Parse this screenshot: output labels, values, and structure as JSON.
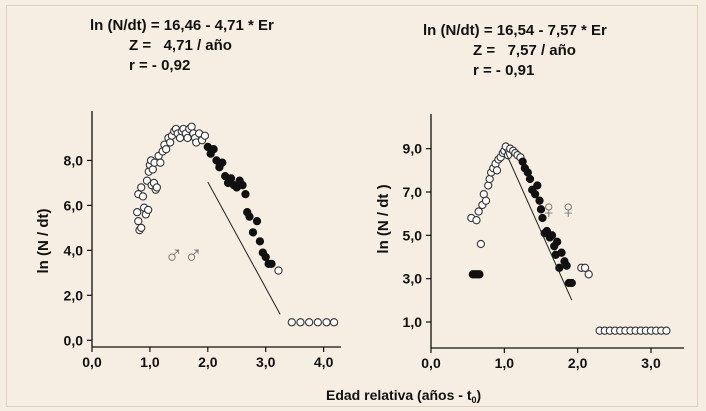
{
  "xlabel_main": "Edad relativa (años - t",
  "xlabel_sub": "0",
  "xlabel_end": ")",
  "chart_data": [
    {
      "type": "scatter",
      "equation": "ln (N/dt) = 16,46 - 4,71 * Er",
      "z_text": "Z =   4,71 / año",
      "r_text": "r = - 0,92",
      "ylabel": "ln (N / dt)",
      "symbol": "♂♂",
      "xlim": [
        0.0,
        4.3
      ],
      "ylim": [
        -0.3,
        10.2
      ],
      "xticks": [
        0.0,
        1.0,
        2.0,
        3.0,
        4.0
      ],
      "xtick_labels": [
        "0,0",
        "1,0",
        "2,0",
        "3,0",
        "4,0"
      ],
      "yticks": [
        0.0,
        2.0,
        4.0,
        6.0,
        8.0
      ],
      "ytick_labels": [
        "0,0",
        "2,0",
        "4,0",
        "6,0",
        "8,0"
      ],
      "fit": {
        "intercept": 16.46,
        "slope": -4.71,
        "x_range": [
          2.0,
          3.25
        ]
      },
      "series": [
        {
          "marker": "open",
          "points": [
            [
              0.78,
              5.7
            ],
            [
              0.8,
              5.3
            ],
            [
              0.82,
              4.9
            ],
            [
              0.85,
              5.0
            ],
            [
              0.8,
              6.5
            ],
            [
              0.85,
              6.8
            ],
            [
              0.88,
              6.4
            ],
            [
              0.9,
              5.9
            ],
            [
              0.93,
              5.6
            ],
            [
              0.97,
              5.8
            ],
            [
              0.95,
              7.1
            ],
            [
              0.98,
              7.5
            ],
            [
              1.0,
              7.8
            ],
            [
              1.02,
              8.0
            ],
            [
              1.05,
              7.6
            ],
            [
              1.08,
              7.9
            ],
            [
              1.03,
              6.9
            ],
            [
              1.07,
              7.0
            ],
            [
              1.1,
              6.7
            ],
            [
              1.12,
              6.8
            ],
            [
              1.15,
              8.2
            ],
            [
              1.18,
              7.9
            ],
            [
              1.22,
              8.4
            ],
            [
              1.25,
              8.7
            ],
            [
              1.28,
              8.5
            ],
            [
              1.32,
              9.0
            ],
            [
              1.35,
              8.8
            ],
            [
              1.38,
              9.1
            ],
            [
              1.42,
              9.3
            ],
            [
              1.45,
              9.4
            ],
            [
              1.48,
              9.2
            ],
            [
              1.52,
              9.0
            ],
            [
              1.55,
              9.3
            ],
            [
              1.58,
              9.4
            ],
            [
              1.62,
              9.2
            ],
            [
              1.65,
              9.0
            ],
            [
              1.68,
              9.4
            ],
            [
              1.72,
              9.5
            ],
            [
              1.75,
              9.2
            ],
            [
              1.78,
              9.0
            ],
            [
              1.8,
              8.8
            ],
            [
              1.85,
              9.2
            ],
            [
              1.9,
              8.9
            ],
            [
              1.95,
              9.1
            ],
            [
              3.22,
              3.1
            ],
            [
              3.45,
              0.8
            ],
            [
              3.6,
              0.8
            ],
            [
              3.75,
              0.8
            ],
            [
              3.9,
              0.8
            ],
            [
              4.05,
              0.8
            ],
            [
              4.18,
              0.8
            ]
          ]
        },
        {
          "marker": "filled",
          "points": [
            [
              2.0,
              8.6
            ],
            [
              2.05,
              8.3
            ],
            [
              2.1,
              8.5
            ],
            [
              2.15,
              8.0
            ],
            [
              2.2,
              7.7
            ],
            [
              2.25,
              7.9
            ],
            [
              2.3,
              7.3
            ],
            [
              2.35,
              7.0
            ],
            [
              2.4,
              7.2
            ],
            [
              2.45,
              6.9
            ],
            [
              2.5,
              6.8
            ],
            [
              2.55,
              7.1
            ],
            [
              2.6,
              6.9
            ],
            [
              2.65,
              6.5
            ],
            [
              2.68,
              5.7
            ],
            [
              2.72,
              5.5
            ],
            [
              2.78,
              4.8
            ],
            [
              2.85,
              5.3
            ],
            [
              2.9,
              4.4
            ],
            [
              2.95,
              3.9
            ],
            [
              3.0,
              3.7
            ],
            [
              3.05,
              3.4
            ],
            [
              3.1,
              3.4
            ]
          ]
        }
      ]
    },
    {
      "type": "scatter",
      "equation": "ln (N/dt) = 16,54 - 7,57 * Er",
      "z_text": "Z =   7,57 / año",
      "r_text": "r = - 0,91",
      "ylabel": "ln (N / dt )",
      "symbol": "♀♀",
      "xlim": [
        0.0,
        3.45
      ],
      "ylim": [
        -0.2,
        10.6
      ],
      "xticks": [
        0.0,
        1.0,
        2.0,
        3.0
      ],
      "xtick_labels": [
        "0,0",
        "1,0",
        "2,0",
        "3,0"
      ],
      "yticks": [
        1.0,
        3.0,
        5.0,
        7.0,
        9.0
      ],
      "ytick_labels": [
        "1,0",
        "3,0",
        "5,0",
        "7,0",
        "9,0"
      ],
      "fit": {
        "intercept": 16.54,
        "slope": -7.57,
        "x_range": [
          1.0,
          1.92
        ]
      },
      "series": [
        {
          "marker": "open",
          "points": [
            [
              0.55,
              5.8
            ],
            [
              0.62,
              5.7
            ],
            [
              0.65,
              6.1
            ],
            [
              0.68,
              4.6
            ],
            [
              0.7,
              6.4
            ],
            [
              0.72,
              6.9
            ],
            [
              0.75,
              6.6
            ],
            [
              0.78,
              7.3
            ],
            [
              0.8,
              7.6
            ],
            [
              0.82,
              7.9
            ],
            [
              0.85,
              8.1
            ],
            [
              0.88,
              8.3
            ],
            [
              0.9,
              8.0
            ],
            [
              0.92,
              8.5
            ],
            [
              0.95,
              8.6
            ],
            [
              0.98,
              8.8
            ],
            [
              1.0,
              8.9
            ],
            [
              1.02,
              9.1
            ],
            [
              1.05,
              8.7
            ],
            [
              1.08,
              9.0
            ],
            [
              1.12,
              8.9
            ],
            [
              1.15,
              8.8
            ],
            [
              1.18,
              8.7
            ],
            [
              1.22,
              8.6
            ],
            [
              2.05,
              3.5
            ],
            [
              2.1,
              3.5
            ],
            [
              2.15,
              3.2
            ],
            [
              2.3,
              0.6
            ],
            [
              2.37,
              0.6
            ],
            [
              2.44,
              0.6
            ],
            [
              2.51,
              0.6
            ],
            [
              2.58,
              0.6
            ],
            [
              2.65,
              0.6
            ],
            [
              2.72,
              0.6
            ],
            [
              2.79,
              0.6
            ],
            [
              2.86,
              0.6
            ],
            [
              2.93,
              0.6
            ],
            [
              3.0,
              0.6
            ],
            [
              3.07,
              0.6
            ],
            [
              3.14,
              0.6
            ],
            [
              3.21,
              0.6
            ]
          ]
        },
        {
          "marker": "filled",
          "points": [
            [
              0.57,
              3.2
            ],
            [
              0.6,
              3.2
            ],
            [
              0.63,
              3.2
            ],
            [
              0.66,
              3.2
            ],
            [
              1.25,
              8.4
            ],
            [
              1.28,
              8.1
            ],
            [
              1.32,
              7.9
            ],
            [
              1.35,
              7.6
            ],
            [
              1.38,
              7.1
            ],
            [
              1.42,
              6.9
            ],
            [
              1.45,
              7.3
            ],
            [
              1.48,
              6.6
            ],
            [
              1.5,
              6.2
            ],
            [
              1.52,
              5.8
            ],
            [
              1.55,
              5.1
            ],
            [
              1.58,
              5.2
            ],
            [
              1.62,
              4.9
            ],
            [
              1.65,
              5.0
            ],
            [
              1.68,
              4.5
            ],
            [
              1.7,
              4.1
            ],
            [
              1.72,
              4.7
            ],
            [
              1.75,
              3.5
            ],
            [
              1.78,
              4.2
            ],
            [
              1.82,
              3.8
            ],
            [
              1.85,
              3.6
            ],
            [
              1.88,
              2.8
            ],
            [
              1.92,
              2.8
            ]
          ]
        }
      ]
    }
  ]
}
